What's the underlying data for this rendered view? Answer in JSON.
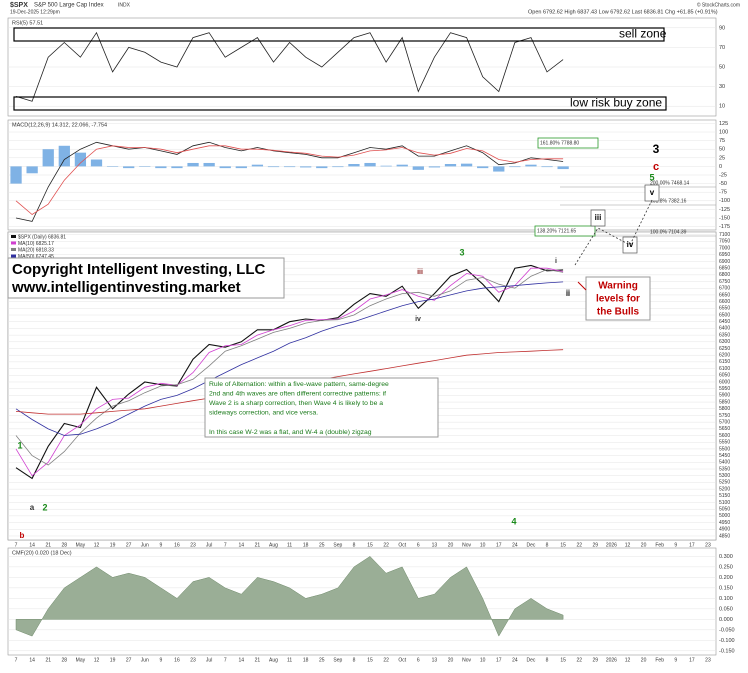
{
  "header": {
    "symbol": "$SPX",
    "name": "S&P 500 Large Cap Index",
    "exchange": "INDX",
    "datetime": "19-Dec-2025 12:29pm",
    "quote": "Open 6792.62  High 6837.43  Low 6792.62  Last 6836.81  Chg +61.85 (+0.91%)",
    "source": "© StockCharts.com"
  },
  "chart_data": [
    {
      "type": "line",
      "title": "RSI(5) 57.51",
      "ylim": [
        0,
        100
      ],
      "yticks": [
        10,
        30,
        50,
        70,
        90
      ],
      "series": [
        {
          "color": "#222222",
          "values": [
            20,
            15,
            60,
            75,
            60,
            85,
            45,
            70,
            65,
            55,
            50,
            80,
            85,
            60,
            70,
            80,
            55,
            75,
            60,
            50,
            65,
            80,
            85,
            55,
            80,
            25,
            60,
            85,
            80,
            40,
            25,
            75,
            80,
            45,
            57.51,
            null,
            null,
            null,
            null,
            null,
            null,
            null,
            null,
            null
          ]
        }
      ],
      "annotations": [
        "sell zone",
        "low risk buy zone"
      ]
    },
    {
      "type": "line",
      "title": "MACD(12,26,9) 14.312, 22.066, -7.754",
      "ylim": [
        -185,
        135
      ],
      "yticks": [
        125,
        100,
        75,
        50,
        25,
        0,
        -25,
        -50,
        -75,
        -100,
        -125,
        -150,
        -175
      ],
      "series": [
        {
          "type": "bar",
          "color": "#7fb2e5",
          "values": [
            -50,
            -20,
            50,
            60,
            40,
            20,
            0,
            -5,
            0,
            -5,
            -5,
            10,
            10,
            -5,
            -5,
            5,
            -2,
            -2,
            -3,
            -5,
            -2,
            7,
            10,
            2,
            5,
            -10,
            -3,
            7,
            8,
            -5,
            -15,
            -2,
            5,
            -2,
            -7.754,
            null,
            null,
            null,
            null,
            null,
            null,
            null,
            null,
            null
          ]
        },
        {
          "color": "#222222",
          "values": [
            -150,
            -160,
            -60,
            20,
            50,
            70,
            60,
            50,
            55,
            45,
            35,
            60,
            70,
            55,
            45,
            55,
            45,
            40,
            35,
            25,
            25,
            40,
            55,
            50,
            60,
            30,
            30,
            45,
            60,
            40,
            5,
            10,
            25,
            20,
            14.312,
            null,
            null,
            null,
            null,
            null,
            null,
            null,
            null,
            null
          ]
        },
        {
          "color": "#e05050",
          "values": [
            -100,
            -140,
            -110,
            -40,
            10,
            50,
            60,
            55,
            55,
            50,
            40,
            50,
            60,
            60,
            50,
            50,
            47,
            42,
            38,
            30,
            27,
            33,
            45,
            48,
            55,
            40,
            33,
            38,
            52,
            45,
            20,
            12,
            20,
            22,
            22.066,
            null,
            null,
            null,
            null,
            null,
            null,
            null,
            null,
            null
          ]
        }
      ],
      "annotations": [
        "161.80% 7788.80",
        "200.00% 7468.14",
        "161.8% 7382.16",
        "100.0% 7104.39",
        "138.20% 7121.65"
      ]
    },
    {
      "type": "line",
      "ylim": [
        4820,
        7120
      ],
      "yticks": [
        4850,
        4900,
        4950,
        5000,
        5050,
        5100,
        5150,
        5200,
        5250,
        5300,
        5350,
        5400,
        5450,
        5500,
        5550,
        5600,
        5650,
        5700,
        5750,
        5800,
        5850,
        5900,
        5950,
        6000,
        6050,
        6100,
        6150,
        6200,
        6250,
        6300,
        6350,
        6400,
        6450,
        6500,
        6550,
        6600,
        6650,
        6700,
        6750,
        6800,
        6850,
        6900,
        6950,
        7000,
        7050,
        7100
      ],
      "categories": [
        "7",
        "14",
        "21",
        "28",
        "May",
        "12",
        "19",
        "27",
        "Jun",
        "9",
        "16",
        "23",
        "Jul",
        "7",
        "14",
        "21",
        "Aug",
        "11",
        "18",
        "25",
        "Sep",
        "8",
        "15",
        "22",
        "Oct",
        "6",
        "13",
        "20",
        "Nov",
        "10",
        "17",
        "24",
        "Dec",
        "8",
        "15",
        "22",
        "29",
        "2026",
        "12",
        "20",
        "Feb",
        "9",
        "17",
        "23"
      ],
      "series": [
        {
          "name": "$SPX (Daily) 6836.81",
          "color": "#111111",
          "values": [
            5360,
            5280,
            5520,
            5690,
            5660,
            5960,
            5800,
            5910,
            6000,
            5980,
            5970,
            6170,
            6280,
            6260,
            6300,
            6390,
            6390,
            6450,
            6470,
            6460,
            6480,
            6580,
            6660,
            6640,
            6715,
            6550,
            6660,
            6790,
            6840,
            6730,
            6600,
            6850,
            6870,
            6830,
            6836.81,
            null,
            null,
            null,
            null,
            null,
            null,
            null,
            null,
            null
          ]
        },
        {
          "name": "MA(10) 6825.17",
          "color": "#d040d0",
          "values": [
            5500,
            5300,
            5400,
            5600,
            5680,
            5800,
            5870,
            5880,
            5960,
            5990,
            5975,
            6070,
            6220,
            6270,
            6280,
            6350,
            6390,
            6420,
            6460,
            6465,
            6470,
            6530,
            6620,
            6650,
            6690,
            6640,
            6610,
            6720,
            6810,
            6790,
            6670,
            6720,
            6850,
            6850,
            6825.17,
            null,
            null,
            null,
            null,
            null,
            null,
            null,
            null,
            null
          ]
        },
        {
          "name": "MA(20) 6818.33",
          "color": "#808080",
          "values": [
            5600,
            5450,
            5380,
            5480,
            5620,
            5730,
            5820,
            5860,
            5920,
            5970,
            5980,
            6020,
            6120,
            6230,
            6270,
            6320,
            6370,
            6400,
            6440,
            6460,
            6465,
            6500,
            6570,
            6620,
            6660,
            6670,
            6640,
            6680,
            6760,
            6780,
            6730,
            6700,
            6790,
            6840,
            6818.33,
            null,
            null,
            null,
            null,
            null,
            null,
            null,
            null,
            null
          ]
        },
        {
          "name": "MA(50) 6747.45",
          "color": "#3030a0",
          "values": [
            5800,
            5720,
            5650,
            5600,
            5610,
            5650,
            5700,
            5760,
            5820,
            5870,
            5900,
            5950,
            6010,
            6070,
            6130,
            6180,
            6230,
            6290,
            6330,
            6380,
            6420,
            6450,
            6490,
            6530,
            6570,
            6600,
            6620,
            6650,
            6680,
            6700,
            6710,
            6720,
            6730,
            6740,
            6747.45,
            null,
            null,
            null,
            null,
            null,
            null,
            null,
            null,
            null
          ]
        },
        {
          "name": "MA(200) 6240.98",
          "color": "#c03030",
          "values": [
            5780,
            5770,
            5760,
            5760,
            5760,
            5770,
            5780,
            5790,
            5800,
            5820,
            5840,
            5860,
            5880,
            5900,
            5920,
            5940,
            5960,
            5980,
            6000,
            6020,
            6040,
            6060,
            6080,
            6100,
            6120,
            6140,
            6160,
            6180,
            6200,
            6210,
            6220,
            6225,
            6230,
            6236,
            6240.98,
            null,
            null,
            null,
            null,
            null,
            null,
            null,
            null,
            null
          ]
        }
      ],
      "annotations": [
        "b",
        "a",
        "1",
        "2",
        "3",
        "4",
        "i",
        "ii",
        "iii",
        "iv",
        "3",
        "c",
        "5",
        "v",
        "iii",
        "iv",
        "ii"
      ],
      "copyright": [
        "Copyright Intelligent Investing, LLC",
        "www.intelligentinvesting.market"
      ],
      "rule": [
        "Rule of Alternation: within a five-wave pattern, same-degree",
        "2nd and 4th waves are often different corrective patterns: if",
        "Wave 2 is a sharp correction, then Wave 4 is likely to be a",
        "sideways correction, and vice versa.",
        "",
        "In this case W-2 was a flat, and W-4 a (double) zigzag"
      ],
      "warning": [
        "Warning",
        "levels for",
        "the Bulls"
      ]
    },
    {
      "type": "area",
      "title": "CMF(20) 0.020 (18 Dec)",
      "color": "#9aae96",
      "ylim": [
        -0.17,
        0.34
      ],
      "yticks": [
        {
          "value": 0.3,
          "label": "0.300"
        },
        {
          "value": 0.25,
          "label": "0.250"
        },
        {
          "value": 0.2,
          "label": "0.200"
        },
        {
          "value": 0.15,
          "label": "0.150"
        },
        {
          "value": 0.1,
          "label": "0.100"
        },
        {
          "value": 0.05,
          "label": "0.050"
        },
        {
          "value": 0,
          "label": "0.000"
        },
        {
          "value": -0.05,
          "label": "-0.050"
        },
        {
          "value": -0.1,
          "label": "-0.100"
        },
        {
          "value": -0.15,
          "label": "-0.150"
        }
      ],
      "values": [
        -0.05,
        -0.08,
        0.05,
        0.15,
        0.2,
        0.25,
        0.2,
        0.22,
        0.2,
        0.15,
        0.1,
        0.18,
        0.2,
        0.15,
        0.12,
        0.2,
        0.18,
        0.15,
        0.1,
        0.12,
        0.15,
        0.25,
        0.3,
        0.22,
        0.25,
        0.1,
        0.12,
        0.2,
        0.25,
        0.1,
        -0.08,
        0.05,
        0.1,
        0.05,
        0.02,
        null,
        null,
        null,
        null,
        null,
        null,
        null,
        null,
        null
      ]
    }
  ]
}
